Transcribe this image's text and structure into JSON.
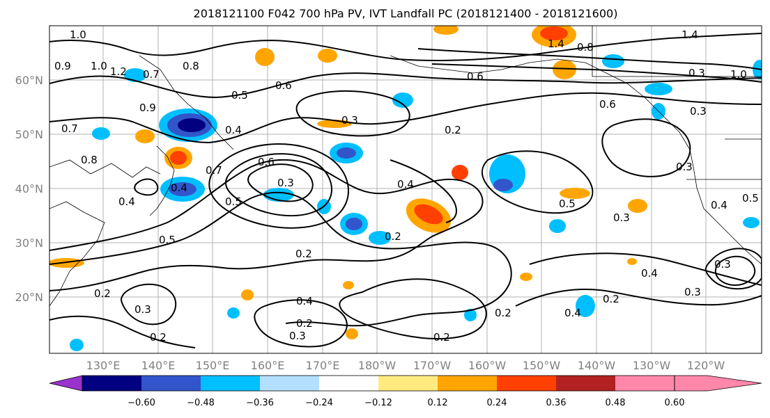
{
  "title": "2018121100 F042 700 hPa PV, IVT Landfall PC (2018121400 - 2018121600)",
  "map": {
    "lat_labels": [
      "60°N",
      "50°N",
      "40°N",
      "30°N",
      "20°N"
    ],
    "lon_labels": [
      "130°E",
      "140°E",
      "150°E",
      "160°E",
      "170°E",
      "180°W",
      "170°W",
      "160°W",
      "150°W",
      "140°W",
      "130°W",
      "120°W"
    ],
    "contour_labels": [
      "1.0",
      "0.9",
      "1.0",
      "1.2",
      "0.7",
      "0.8",
      "0.5",
      "0.6",
      "0.7",
      "0.8",
      "0.4",
      "0.9",
      "0.4",
      "0.7",
      "0.5",
      "0.4",
      "0.6",
      "0.3",
      "0.2",
      "0.4",
      "0.2",
      "0.3",
      "0.2",
      "0.5",
      "0.2",
      "0.3",
      "0.2",
      "0.3",
      "0.2",
      "0.4",
      "0.2",
      "0.2",
      "0.4",
      "0.3",
      "0.2",
      "1.4",
      "1.4",
      "0.8",
      "0.6",
      "0.6",
      "0.3",
      "1.0",
      "0.3",
      "0.4",
      "0.5",
      "0.3",
      "0.4",
      "0.3",
      "0.5",
      "0.3"
    ]
  },
  "colorbar": {
    "ticks": [
      "−0.60",
      "−0.48",
      "−0.36",
      "−0.24",
      "−0.12",
      "0.12",
      "0.24",
      "0.36",
      "0.48",
      "0.60"
    ],
    "colors": [
      "#9933cc",
      "#000080",
      "#3355cc",
      "#00bfff",
      "#b3e0ff",
      "#ffffff",
      "#ffeb80",
      "#ffa500",
      "#ff4000",
      "#b22222",
      "#ff88aa"
    ]
  },
  "shading_colors": {
    "neg_light": "#b3e0ff",
    "neg_mid": "#00bfff",
    "neg_strong": "#3355cc",
    "neg_max": "#000080",
    "pos_light": "#ffeb80",
    "pos_mid": "#ffa500",
    "pos_strong": "#ff4000",
    "pos_max": "#b22222"
  }
}
